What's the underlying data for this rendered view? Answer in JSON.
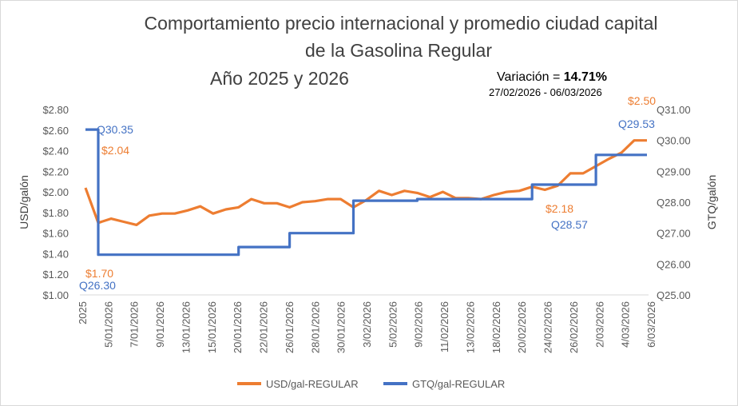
{
  "chart_data": {
    "type": "line",
    "title_lines": [
      "Comportamiento precio internacional y promedio ciudad capital",
      "de la Gasolina Regular",
      "Año 2025 y 2026"
    ],
    "variation_prefix": "Variación = ",
    "variation_value": "14.71%",
    "date_range": "27/02/2026 - 06/03/2026",
    "ylabel_left": "USD/galón",
    "ylabel_right": "GTQ/galón",
    "ylim_left": [
      1.0,
      2.8
    ],
    "ylim_right": [
      25.0,
      31.0
    ],
    "left_ticks": [
      "$1.00",
      "$1.20",
      "$1.40",
      "$1.60",
      "$1.80",
      "$2.00",
      "$2.20",
      "$2.40",
      "$2.60",
      "$2.80"
    ],
    "right_ticks": [
      "Q25.00",
      "Q26.00",
      "Q27.00",
      "Q28.00",
      "Q29.00",
      "Q30.00",
      "Q31.00"
    ],
    "x_tick_labels": [
      "2025",
      "5/01/2026",
      "7/01/2026",
      "9/01/2026",
      "13/01/2026",
      "15/01/2026",
      "20/01/2026",
      "22/01/2026",
      "26/01/2026",
      "28/01/2026",
      "30/01/2026",
      "3/02/2026",
      "5/02/2026",
      "9/02/2026",
      "11/02/2026",
      "13/02/2026",
      "18/02/2026",
      "20/02/2026",
      "24/02/2026",
      "26/02/2026",
      "2/03/2026",
      "4/03/2026",
      "6/03/2026"
    ],
    "series": [
      {
        "name": "USD/gal-REGULAR",
        "color": "#ED7D31",
        "axis": "left",
        "values": [
          2.04,
          1.7,
          1.74,
          1.71,
          1.68,
          1.77,
          1.79,
          1.79,
          1.82,
          1.86,
          1.79,
          1.83,
          1.85,
          1.93,
          1.89,
          1.89,
          1.85,
          1.9,
          1.91,
          1.93,
          1.93,
          1.85,
          1.92,
          2.01,
          1.97,
          2.01,
          1.99,
          1.95,
          2.0,
          1.94,
          1.94,
          1.93,
          1.97,
          2.0,
          2.01,
          2.05,
          2.02,
          2.06,
          2.18,
          2.18,
          2.25,
          2.32,
          2.38,
          2.5,
          2.5
        ]
      },
      {
        "name": "GTQ/gal-REGULAR",
        "color": "#4472C4",
        "axis": "right",
        "values": [
          30.35,
          26.3,
          26.3,
          26.3,
          26.3,
          26.3,
          26.3,
          26.3,
          26.3,
          26.3,
          26.3,
          26.3,
          26.55,
          26.55,
          26.55,
          26.55,
          27.0,
          27.0,
          27.0,
          27.0,
          27.0,
          28.05,
          28.05,
          28.05,
          28.05,
          28.05,
          28.1,
          28.1,
          28.1,
          28.1,
          28.1,
          28.1,
          28.1,
          28.1,
          28.1,
          28.57,
          28.57,
          28.57,
          28.57,
          28.57,
          29.53,
          29.53,
          29.53,
          29.53,
          29.53
        ]
      }
    ],
    "annotations": {
      "usd_first": "$2.04",
      "usd_min": "$1.70",
      "usd_pre_last": "$2.18",
      "usd_last": "$2.50",
      "gtq_first": "Q30.35",
      "gtq_min": "Q26.30",
      "gtq_pre_last": "Q28.57",
      "gtq_last": "Q29.53"
    },
    "legend": [
      "USD/gal-REGULAR",
      "GTQ/gal-REGULAR"
    ],
    "legend_position": "bottom",
    "grid": false
  }
}
